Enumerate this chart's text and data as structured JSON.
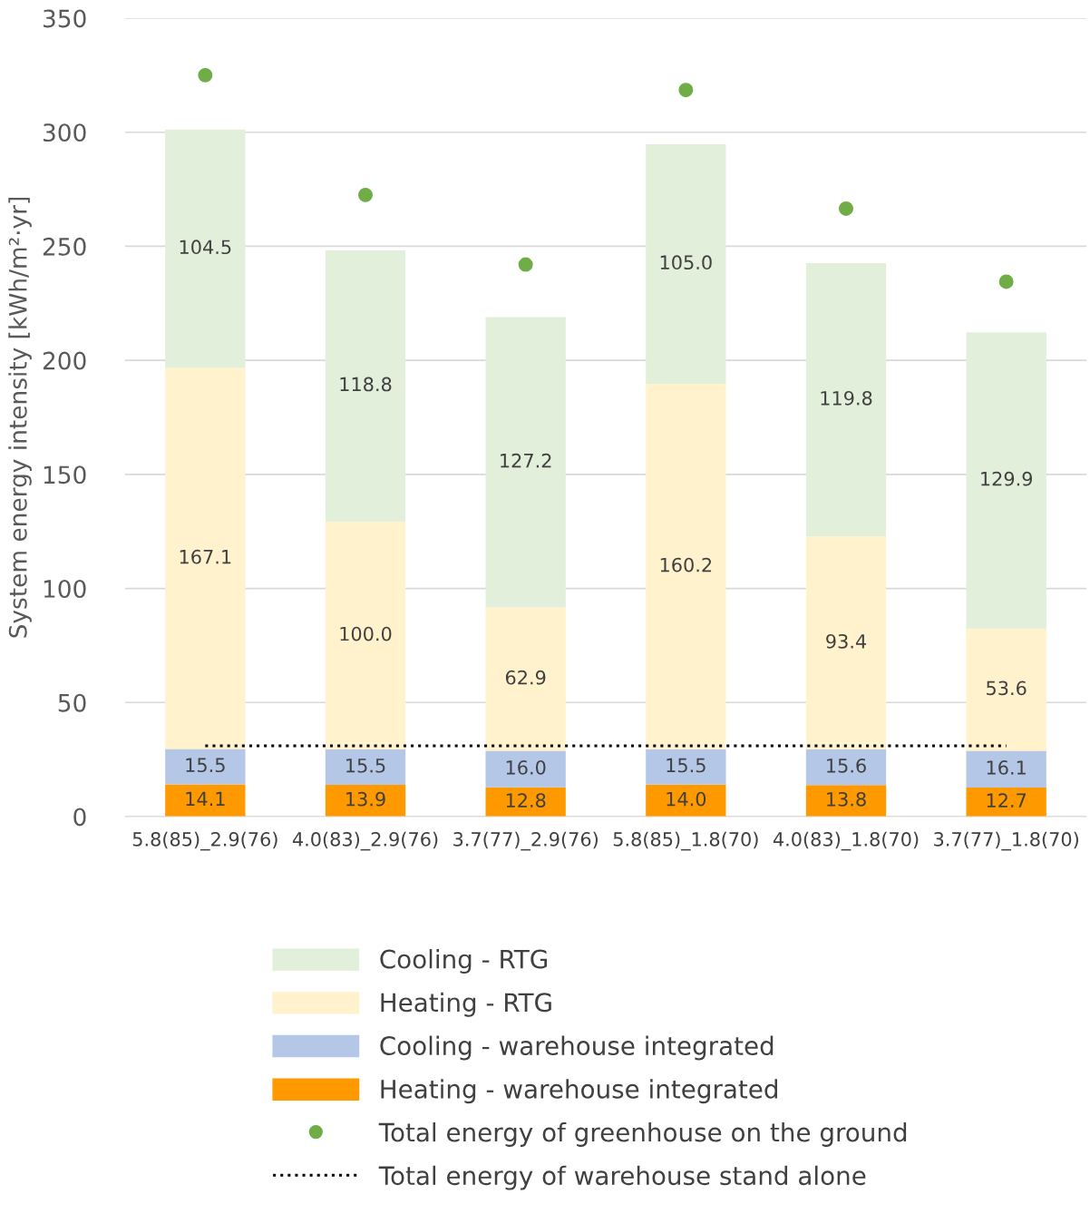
{
  "chart_data": {
    "type": "bar",
    "stacked": true,
    "ylabel": "System energy intensity [kWh/m²·yr]",
    "categories": [
      "5.8(85)_2.9(76)",
      "4.0(83)_2.9(76)",
      "3.7(77)_2.9(76)",
      "5.8(85)_1.8(70)",
      "4.0(83)_1.8(70)",
      "3.7(77)_1.8(70)"
    ],
    "series": [
      {
        "name": "Heating - warehouse integrated",
        "color": "#ff9900",
        "values": [
          14.1,
          13.9,
          12.8,
          14.0,
          13.8,
          12.7
        ],
        "value_labels": [
          "14.1",
          "13.9",
          "12.8",
          "14.0",
          "13.8",
          "12.7"
        ]
      },
      {
        "name": "Cooling - warehouse integrated",
        "color": "#b4c7e7",
        "values": [
          15.5,
          15.5,
          16.0,
          15.5,
          15.6,
          16.1
        ],
        "value_labels": [
          "15.5",
          "15.5",
          "16.0",
          "15.5",
          "15.6",
          "16.1"
        ]
      },
      {
        "name": "Heating - RTG",
        "color": "#fff2cc",
        "values": [
          167.1,
          100.0,
          62.9,
          160.2,
          93.4,
          53.6
        ],
        "value_labels": [
          "167.1",
          "100.0",
          "62.9",
          "160.2",
          "93.4",
          "53.6"
        ]
      },
      {
        "name": "Cooling - RTG",
        "color": "#e2efda",
        "values": [
          104.5,
          118.8,
          127.2,
          105.0,
          119.8,
          129.9
        ],
        "value_labels": [
          "104.5",
          "118.8",
          "127.2",
          "105.0",
          "119.8",
          "129.9"
        ]
      },
      {
        "name": "Total energy of greenhouse on the ground",
        "type": "scatter",
        "marker": "circle",
        "color": "#70ad47",
        "values": [
          325,
          272.5,
          242,
          318.5,
          266.5,
          234.5
        ]
      },
      {
        "name": "Total energy of warehouse stand alone",
        "type": "line",
        "line_style": "dotted",
        "color": "#000000",
        "values": [
          31,
          31,
          31,
          31,
          31,
          31
        ]
      }
    ],
    "ylim": [
      0,
      350
    ],
    "yticks": [
      0,
      50,
      100,
      150,
      200,
      250,
      300,
      350
    ],
    "grid": "y",
    "legend": "bottom"
  }
}
